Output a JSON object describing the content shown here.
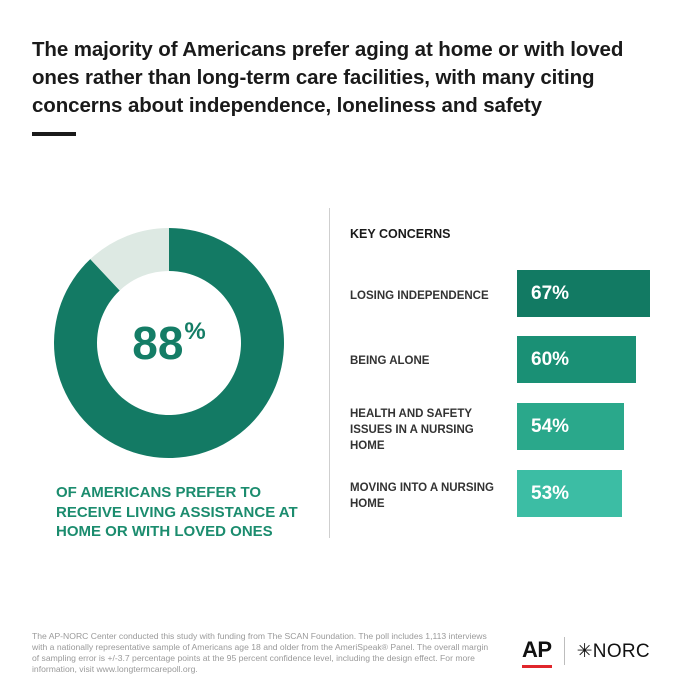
{
  "title": "The majority of Americans prefer aging at home or with loved ones rather than long-term care facilities, with many citing concerns about independence, loneliness and safety",
  "colors": {
    "donut_main": "#137a64",
    "donut_rest": "#dde9e3",
    "caption": "#1b8c6e",
    "bars": [
      "#127a63",
      "#1a9075",
      "#2aa88b",
      "#3cbda4"
    ]
  },
  "chart_data": [
    {
      "type": "pie",
      "variant": "donut",
      "values": [
        88,
        12
      ],
      "center_value": "88",
      "center_suffix": "%",
      "caption": "OF AMERICANS PREFER TO RECEIVE LIVING ASSISTANCE AT HOME OR WITH LOVED ONES"
    },
    {
      "type": "bar",
      "orientation": "horizontal",
      "title": "KEY CONCERNS",
      "categories": [
        "LOSING INDEPENDENCE",
        "BEING ALONE",
        "HEALTH AND SAFETY ISSUES IN A NURSING HOME",
        "MOVING INTO A NURSING HOME"
      ],
      "values": [
        67,
        60,
        54,
        53
      ],
      "value_labels": [
        "67%",
        "60%",
        "54%",
        "53%"
      ],
      "xlim": [
        0,
        100
      ],
      "grid": false
    }
  ],
  "footnote": "The AP-NORC Center conducted this study with funding from The SCAN Foundation. The poll includes 1,113 interviews with a nationally representative sample of Americans age 18 and older from the AmeriSpeak® Panel. The overall margin of sampling error is +/-3.7 percentage points at the 95 percent confidence level, including the design effect. For more information, visit www.longtermcarepoll.org.",
  "logos": {
    "ap": "AP",
    "norc": "NORC",
    "norc_mark": "✳"
  }
}
